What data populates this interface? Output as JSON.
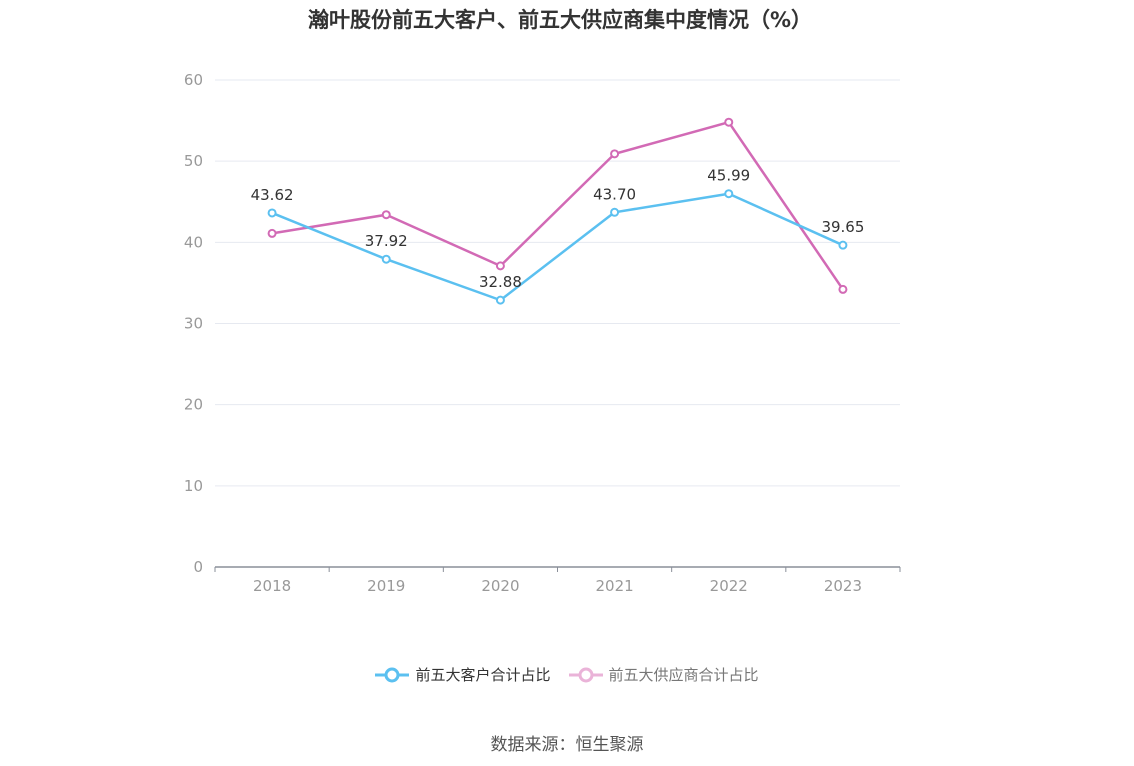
{
  "title": "瀚叶股份前五大客户、前五大供应商集中度情况（%）",
  "source": "数据来源：恒生聚源",
  "colors": {
    "customers": "#5bc0f0",
    "suppliers": "#d26ab5",
    "grid": "#e6e9f0",
    "axis": "#999999"
  },
  "chart_data": {
    "type": "line",
    "title": "瀚叶股份前五大客户、前五大供应商集中度情况（%）",
    "categories": [
      "2018",
      "2019",
      "2020",
      "2021",
      "2022",
      "2023"
    ],
    "ylim": [
      0,
      60
    ],
    "yticks": [
      0,
      10,
      20,
      30,
      40,
      50,
      60
    ],
    "grid": true,
    "legend_position": "bottom",
    "series": [
      {
        "name": "前五大客户合计占比",
        "values": [
          43.62,
          37.92,
          32.88,
          43.7,
          45.99,
          39.65
        ],
        "labels": [
          "43.62",
          "37.92",
          "32.88",
          "43.70",
          "45.99",
          "39.65"
        ],
        "show_labels": true
      },
      {
        "name": "前五大供应商合计占比",
        "values": [
          41.1,
          43.4,
          37.1,
          50.9,
          54.8,
          34.2
        ],
        "show_labels": false
      }
    ]
  }
}
